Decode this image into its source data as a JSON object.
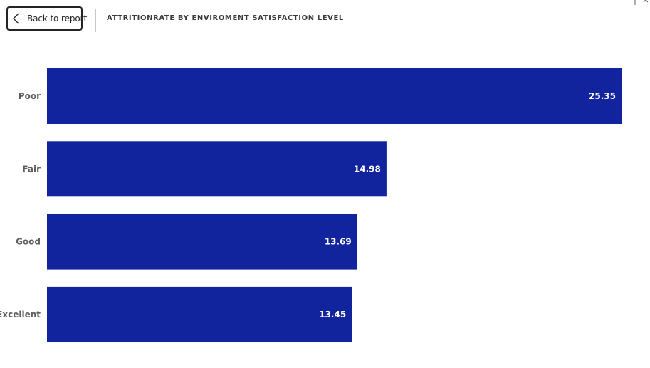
{
  "header": {
    "back_label": "Back to report",
    "title": "ATTRITIONRATE BY ENVIROMENT SATISFACTION LEVEL"
  },
  "colors": {
    "bar": "#12239e",
    "category_text": "#605e5c",
    "data_label_text": "#ffffff"
  },
  "icons": [
    "chevron-left-icon",
    "focus-mode-icon",
    "more-options-icon"
  ],
  "chart_data": {
    "type": "bar",
    "orientation": "horizontal",
    "categories": [
      "Poor",
      "Fair",
      "Good",
      "Excellent"
    ],
    "values": [
      25.35,
      14.98,
      13.69,
      13.45
    ],
    "data_labels": [
      "25.35",
      "14.98",
      "13.69",
      "13.45"
    ],
    "xlim": [
      0,
      25.35
    ],
    "grid": false,
    "legend": "none"
  }
}
